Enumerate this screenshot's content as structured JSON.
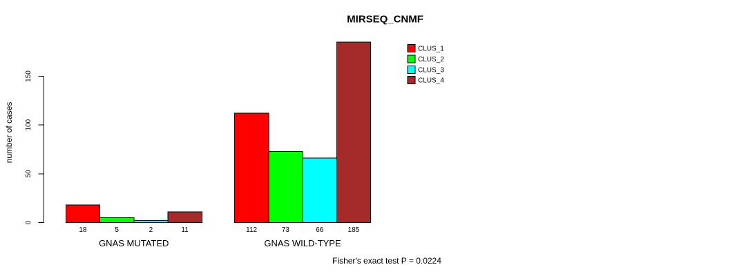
{
  "chart_data": {
    "type": "bar",
    "title": "MIRSEQ_CNMF",
    "ylabel": "number of cases",
    "xlabel": "",
    "categories": [
      "GNAS MUTATED",
      "GNAS WILD-TYPE"
    ],
    "series": [
      {
        "name": "CLUS_1",
        "color": "#FF0000",
        "values": [
          18,
          112
        ]
      },
      {
        "name": "CLUS_2",
        "color": "#00FF00",
        "values": [
          5,
          73
        ]
      },
      {
        "name": "CLUS_3",
        "color": "#00FFFF",
        "values": [
          2,
          66
        ]
      },
      {
        "name": "CLUS_4",
        "color": "#A52A2A",
        "values": [
          11,
          185
        ]
      }
    ],
    "yticks": [
      0,
      50,
      100,
      150
    ],
    "ylim": [
      0,
      150
    ],
    "grid": false,
    "bar_value_labels": true,
    "legend_position": "top-right",
    "annotation": "Fisher's exact test P = 0.0224"
  },
  "colors": {
    "background": "#FFFFFF",
    "axis": "#000000",
    "bar_border": "#000000",
    "text": "#000000"
  }
}
